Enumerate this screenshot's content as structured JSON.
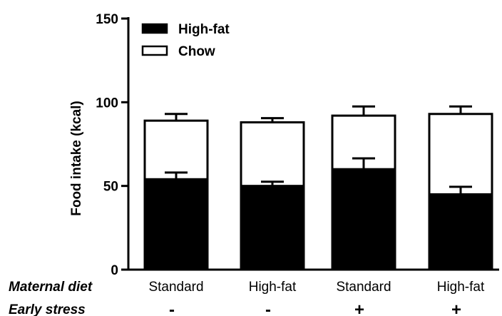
{
  "chart_data": {
    "type": "bar",
    "stacked": true,
    "categories": [
      "Standard",
      "High-fat",
      "Standard",
      "High-fat"
    ],
    "row_labels": {
      "maternal_diet": "Maternal diet",
      "early_stress": "Early stress"
    },
    "early_stress_values": [
      "-",
      "-",
      "+",
      "+"
    ],
    "series": [
      {
        "name": "High-fat",
        "values": [
          54,
          50,
          60,
          45
        ],
        "error": [
          4,
          2.5,
          6.5,
          4.5
        ],
        "color": "#000000"
      },
      {
        "name": "Chow",
        "values": [
          35,
          38,
          32,
          48
        ],
        "error": [
          4,
          2.5,
          5.5,
          4.5
        ],
        "color": "#ffffff"
      }
    ],
    "ylabel": "Food intake (kcal)",
    "ylim": [
      0,
      150
    ],
    "yticks": [
      "0",
      "50",
      "100",
      "150"
    ],
    "grid": false,
    "legend_position": "top-left"
  }
}
